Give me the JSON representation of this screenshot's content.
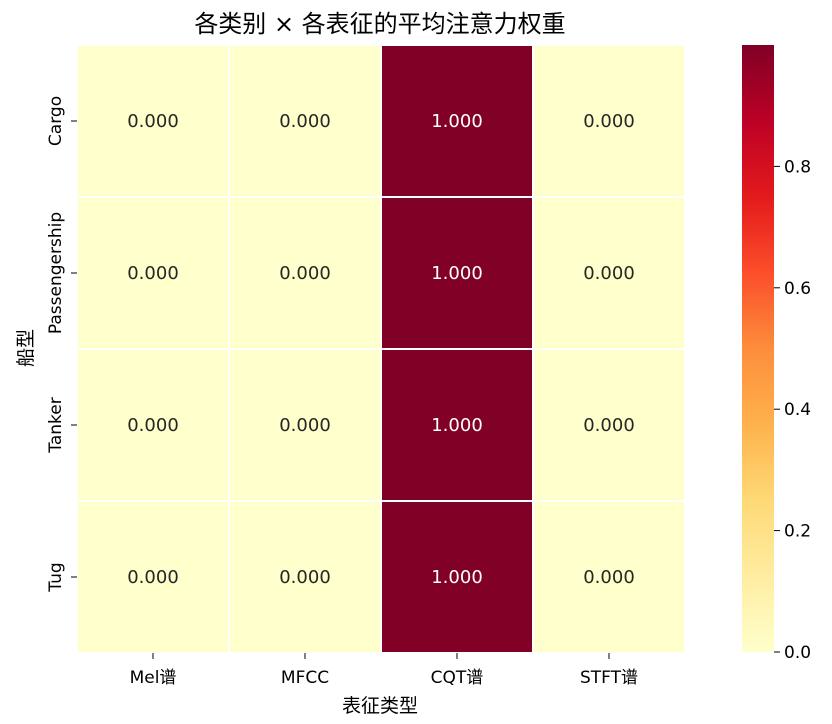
{
  "chart_data": {
    "type": "heatmap",
    "title": "各类别 × 各表征的平均注意力权重",
    "xlabel": "表征类型",
    "ylabel": "船型",
    "x_categories": [
      "Mel谱",
      "MFCC",
      "CQT谱",
      "STFT谱"
    ],
    "y_categories": [
      "Cargo",
      "Passengership",
      "Tanker",
      "Tug"
    ],
    "values": [
      [
        0.0,
        0.0,
        1.0,
        0.0
      ],
      [
        0.0,
        0.0,
        1.0,
        0.0
      ],
      [
        0.0,
        0.0,
        1.0,
        0.0
      ],
      [
        0.0,
        0.0,
        1.0,
        0.0
      ]
    ],
    "cell_labels": [
      [
        "0.000",
        "0.000",
        "1.000",
        "0.000"
      ],
      [
        "0.000",
        "0.000",
        "1.000",
        "0.000"
      ],
      [
        "0.000",
        "0.000",
        "1.000",
        "0.000"
      ],
      [
        "0.000",
        "0.000",
        "1.000",
        "0.000"
      ]
    ],
    "colormap": "YlOrRd",
    "colorbar": {
      "range": [
        0,
        1
      ],
      "ticks": [
        0.0,
        0.2,
        0.4,
        0.6,
        0.8
      ],
      "tick_labels": [
        "0.0",
        "0.2",
        "0.4",
        "0.6",
        "0.8"
      ]
    },
    "colors": {
      "low": "#ffffcc",
      "high": "#800026",
      "text_on_low": "#262626",
      "text_on_high": "#ffffff",
      "gridline": "#ffffff"
    }
  }
}
